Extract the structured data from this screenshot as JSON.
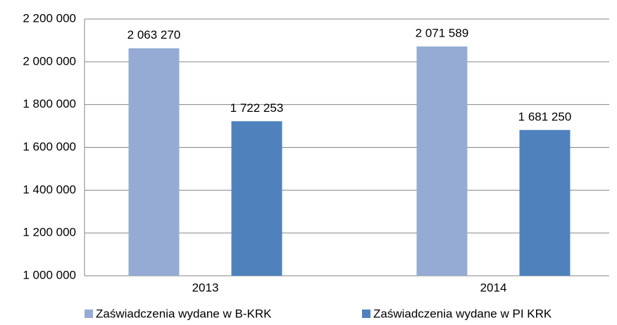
{
  "chart_data": {
    "type": "bar",
    "categories": [
      "2013",
      "2014"
    ],
    "series": [
      {
        "name": "Zaświadczenia wydane w B-KRK",
        "color": "#95abd3",
        "values": [
          2063270,
          2071589
        ],
        "value_labels": [
          "2 063 270",
          "2 071 589"
        ]
      },
      {
        "name": "Zaświadczenia wydane w PI KRK",
        "color": "#4f81bd",
        "values": [
          1722253,
          1681250
        ],
        "value_labels": [
          "1 722 253",
          "1 681 250"
        ]
      }
    ],
    "ylim": [
      1000000,
      2200000
    ],
    "yticks": [
      {
        "value": 1000000,
        "label": "1 000 000"
      },
      {
        "value": 1200000,
        "label": "1 200 000"
      },
      {
        "value": 1400000,
        "label": "1 400 000"
      },
      {
        "value": 1600000,
        "label": "1 600 000"
      },
      {
        "value": 1800000,
        "label": "1 800 000"
      },
      {
        "value": 2000000,
        "label": "2 000 000"
      },
      {
        "value": 2200000,
        "label": "2 200 000"
      }
    ],
    "grid": true,
    "legend": "bottom"
  }
}
